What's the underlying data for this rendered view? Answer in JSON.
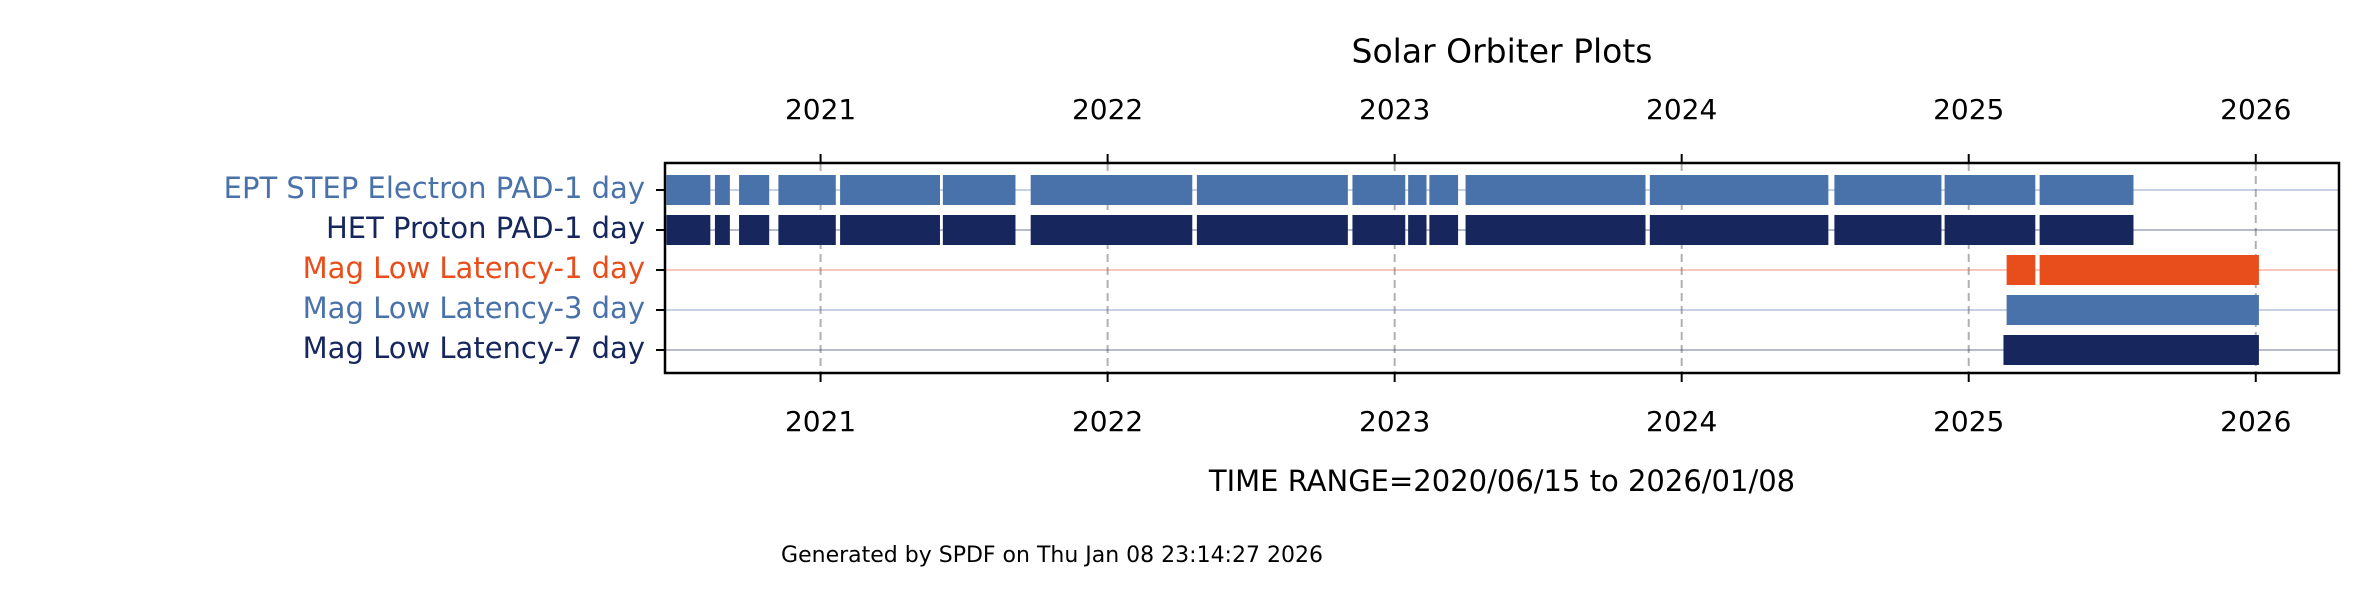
{
  "chart_data": {
    "type": "timeline",
    "title": "Solar Orbiter Plots",
    "x_label": "TIME RANGE=2020/06/15 to 2026/01/08",
    "footer": "Generated by SPDF on Thu Jan 08 23:14:27 2026",
    "xlim": [
      2020.458,
      2026.29
    ],
    "xticks": [
      2021,
      2022,
      2023,
      2024,
      2025,
      2026
    ],
    "grid": true,
    "series": [
      {
        "name": "EPT STEP Electron PAD-1 day",
        "color": "#4a72aa",
        "segments": [
          [
            2020.463,
            2020.616
          ],
          [
            2020.632,
            2020.684
          ],
          [
            2020.716,
            2020.821
          ],
          [
            2020.853,
            2021.053
          ],
          [
            2021.068,
            2021.416
          ],
          [
            2021.426,
            2021.679
          ],
          [
            2021.732,
            2022.295
          ],
          [
            2022.311,
            2022.837
          ],
          [
            2022.853,
            2023.037
          ],
          [
            2023.047,
            2023.111
          ],
          [
            2023.121,
            2023.221
          ],
          [
            2023.247,
            2023.874
          ],
          [
            2023.889,
            2024.511
          ],
          [
            2024.532,
            2024.905
          ],
          [
            2024.916,
            2025.232
          ],
          [
            2025.247,
            2025.574
          ]
        ]
      },
      {
        "name": "HET Proton PAD-1 day",
        "color": "#17275e",
        "segments": [
          [
            2020.463,
            2020.616
          ],
          [
            2020.632,
            2020.684
          ],
          [
            2020.716,
            2020.821
          ],
          [
            2020.853,
            2021.053
          ],
          [
            2021.068,
            2021.416
          ],
          [
            2021.426,
            2021.679
          ],
          [
            2021.732,
            2022.295
          ],
          [
            2022.311,
            2022.837
          ],
          [
            2022.853,
            2023.037
          ],
          [
            2023.047,
            2023.111
          ],
          [
            2023.121,
            2023.221
          ],
          [
            2023.247,
            2023.874
          ],
          [
            2023.889,
            2024.511
          ],
          [
            2024.532,
            2024.905
          ],
          [
            2024.916,
            2025.232
          ],
          [
            2025.247,
            2025.574
          ]
        ]
      },
      {
        "name": "Mag Low Latency-1 day",
        "color": "#e84e1b",
        "segments": [
          [
            2025.132,
            2025.232
          ],
          [
            2025.247,
            2026.011
          ]
        ]
      },
      {
        "name": "Mag Low Latency-3 day",
        "color": "#4a72aa",
        "segments": [
          [
            2025.132,
            2026.011
          ]
        ]
      },
      {
        "name": "Mag Low Latency-7 day",
        "color": "#17275e",
        "segments": [
          [
            2025.121,
            2026.011
          ]
        ]
      }
    ]
  }
}
